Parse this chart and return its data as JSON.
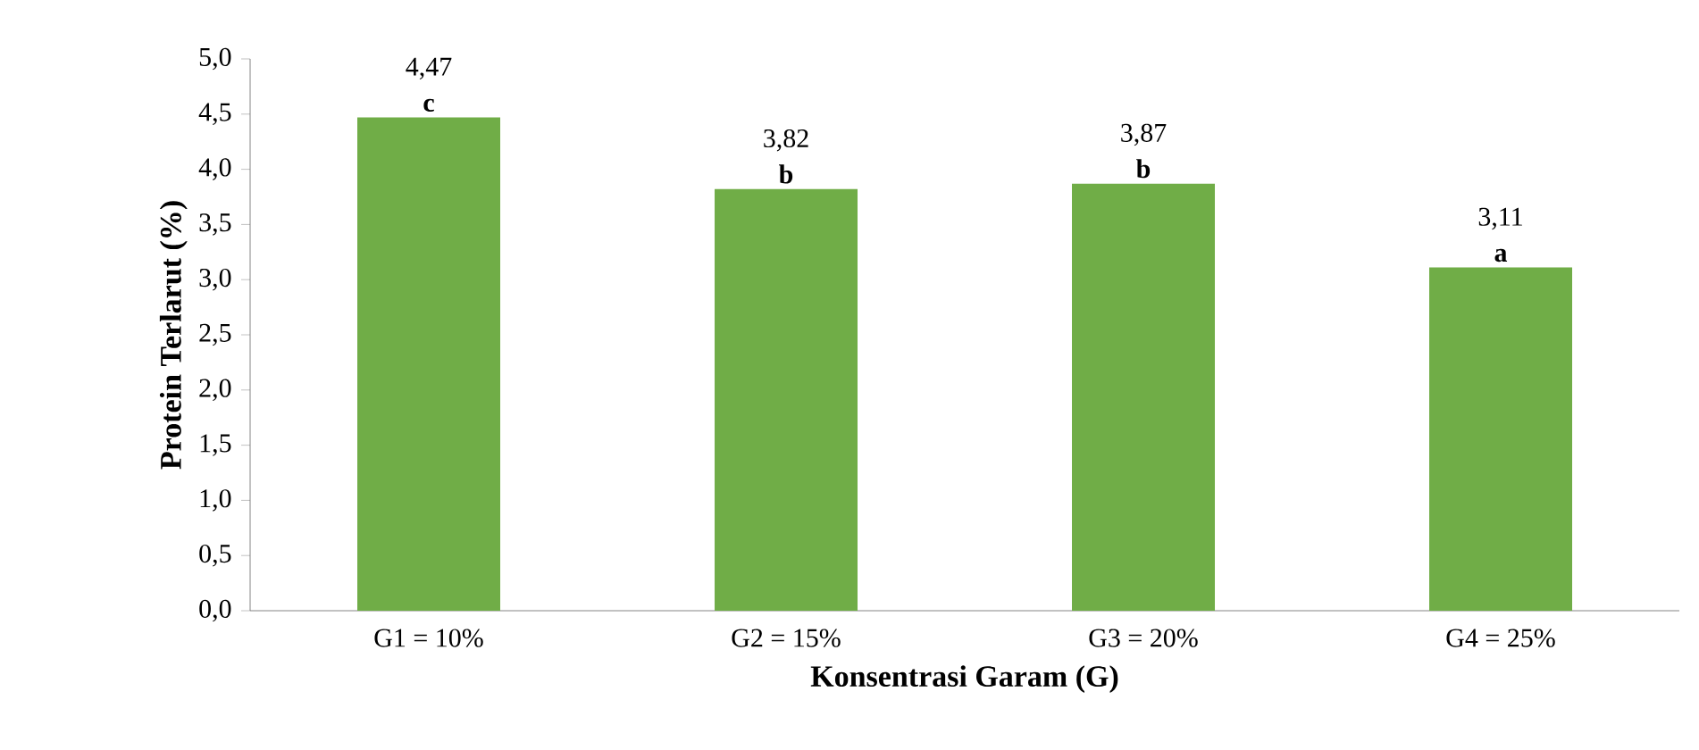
{
  "chart_data": {
    "type": "bar",
    "xlabel": "Konsentrasi Garam (G)",
    "ylabel": "Protein Terlarut (%)",
    "categories": [
      "G1 = 10%",
      "G2 = 15%",
      "G3 = 20%",
      "G4 = 25%"
    ],
    "values": [
      4.47,
      3.82,
      3.87,
      3.11
    ],
    "value_labels": [
      "4,47",
      "3,82",
      "3,87",
      "3,11"
    ],
    "color": "#70ad47",
    "ylim": [
      0,
      5
    ],
    "yticks": [
      {
        "value": 0,
        "label": "0,0"
      },
      {
        "value": 0.5,
        "label": "0,5"
      },
      {
        "value": 1,
        "label": "1,0"
      },
      {
        "value": 1.5,
        "label": "1,5"
      },
      {
        "value": 2,
        "label": "2,0"
      },
      {
        "value": 2.5,
        "label": "2,5"
      },
      {
        "value": 3,
        "label": "3,0"
      },
      {
        "value": 3.5,
        "label": "3,5"
      },
      {
        "value": 4,
        "label": "4,0"
      },
      {
        "value": 4.5,
        "label": "4,5"
      },
      {
        "value": 5,
        "label": "5,0"
      }
    ],
    "annotations": [
      {
        "text": "c",
        "x": "G1 = 10%",
        "y": 4.47
      },
      {
        "text": "b",
        "x": "G2 = 15%",
        "y": 3.82
      },
      {
        "text": "b",
        "x": "G3 = 20%",
        "y": 3.87
      },
      {
        "text": "a",
        "x": "G4 = 25%",
        "y": 3.11
      }
    ],
    "grid": false
  }
}
